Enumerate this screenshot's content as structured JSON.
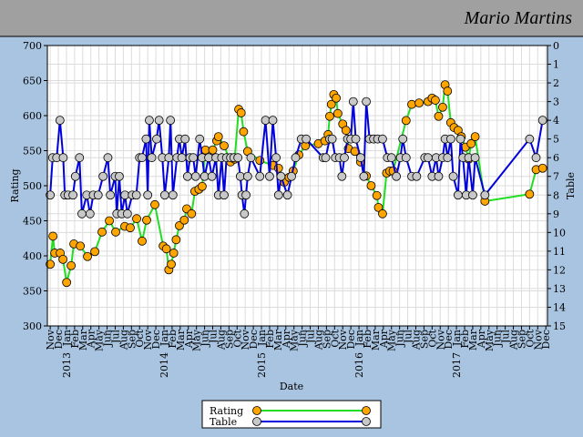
{
  "chart_data": {
    "type": "line",
    "title": "Mario Martins",
    "x_label": "Date",
    "y_label": "Rating",
    "y2_label": "Table",
    "xlim": [
      -0.35,
      61.2
    ],
    "ylim": [
      300,
      700
    ],
    "y2lim": [
      15,
      0
    ],
    "yticks": [
      300,
      350,
      400,
      450,
      500,
      550,
      600,
      650,
      700
    ],
    "y2ticks": [
      0,
      1,
      2,
      3,
      4,
      5,
      6,
      7,
      8,
      9,
      10,
      11,
      12,
      13,
      14,
      15
    ],
    "xticks": [
      {
        "value": 0,
        "label": "Nov"
      },
      {
        "value": 1,
        "label": "Dec"
      },
      {
        "value": 2,
        "label": "Jan"
      },
      {
        "value": 3,
        "label": "Feb"
      },
      {
        "value": 4,
        "label": "Mar"
      },
      {
        "value": 5,
        "label": "Apr"
      },
      {
        "value": 6,
        "label": "May"
      },
      {
        "value": 7,
        "label": "Jun"
      },
      {
        "value": 8,
        "label": "Jul"
      },
      {
        "value": 9,
        "label": "Aug"
      },
      {
        "value": 10,
        "label": "Sep"
      },
      {
        "value": 11,
        "label": "Oct"
      },
      {
        "value": 12,
        "label": "Nov"
      },
      {
        "value": 13,
        "label": "Dec"
      },
      {
        "value": 14,
        "label": "Jan"
      },
      {
        "value": 15,
        "label": "Feb"
      },
      {
        "value": 16,
        "label": "Mar"
      },
      {
        "value": 17,
        "label": "Apr"
      },
      {
        "value": 18,
        "label": "May"
      },
      {
        "value": 19,
        "label": "Jun"
      },
      {
        "value": 20,
        "label": "Jul"
      },
      {
        "value": 21,
        "label": "Aug"
      },
      {
        "value": 22,
        "label": "Sep"
      },
      {
        "value": 23,
        "label": "Oct"
      },
      {
        "value": 24,
        "label": "Nov"
      },
      {
        "value": 25,
        "label": "Dec"
      },
      {
        "value": 26,
        "label": "Jan"
      },
      {
        "value": 27,
        "label": "Feb"
      },
      {
        "value": 28,
        "label": "Mar"
      },
      {
        "value": 29,
        "label": "Apr"
      },
      {
        "value": 30,
        "label": "May"
      },
      {
        "value": 31,
        "label": "Jun"
      },
      {
        "value": 32,
        "label": "Jul"
      },
      {
        "value": 33,
        "label": "Aug"
      },
      {
        "value": 34,
        "label": "Sep"
      },
      {
        "value": 35,
        "label": "Oct"
      },
      {
        "value": 36,
        "label": "Nov"
      },
      {
        "value": 37,
        "label": "Dec"
      },
      {
        "value": 38,
        "label": "Jan"
      },
      {
        "value": 39,
        "label": "Feb"
      },
      {
        "value": 40,
        "label": "Mar"
      },
      {
        "value": 41,
        "label": "Apr"
      },
      {
        "value": 42,
        "label": "May"
      },
      {
        "value": 43,
        "label": "Jun"
      },
      {
        "value": 44,
        "label": "Jul"
      },
      {
        "value": 45,
        "label": "Aug"
      },
      {
        "value": 46,
        "label": "Sep"
      },
      {
        "value": 47,
        "label": "Oct"
      },
      {
        "value": 48,
        "label": "Nov"
      },
      {
        "value": 49,
        "label": "Dec"
      },
      {
        "value": 50,
        "label": "Jan"
      },
      {
        "value": 51,
        "label": "Feb"
      },
      {
        "value": 52,
        "label": "Mar"
      },
      {
        "value": 53,
        "label": "Apr"
      },
      {
        "value": 54,
        "label": "May"
      },
      {
        "value": 55,
        "label": "Jun"
      },
      {
        "value": 56,
        "label": "Jul"
      },
      {
        "value": 57,
        "label": "Aug"
      },
      {
        "value": 58,
        "label": "Sep"
      },
      {
        "value": 59,
        "label": "Oct"
      },
      {
        "value": 60,
        "label": "Nov"
      },
      {
        "value": 61,
        "label": "Dec"
      }
    ],
    "year_ticks": [
      {
        "value": 2,
        "label": "2013"
      },
      {
        "value": 14,
        "label": "2014"
      },
      {
        "value": 26,
        "label": "2015"
      },
      {
        "value": 38,
        "label": "2016"
      },
      {
        "value": 50,
        "label": "2017"
      }
    ],
    "grid": true,
    "series": [
      {
        "name": "Rating",
        "color": "#22dd22",
        "marker_color": "#ffa500",
        "axis": "y",
        "x": [
          0.0,
          0.34,
          0.56,
          1.23,
          1.57,
          2.02,
          2.58,
          2.91,
          3.7,
          4.59,
          5.49,
          6.38,
          7.28,
          8.06,
          9.18,
          9.85,
          10.64,
          11.31,
          11.87,
          12.88,
          13.9,
          14.3,
          14.6,
          14.9,
          15.2,
          15.5,
          15.9,
          16.5,
          16.8,
          17.4,
          17.8,
          18.3,
          18.7,
          19.1,
          20.0,
          20.5,
          20.7,
          21.4,
          22.2,
          22.7,
          23.2,
          23.5,
          23.8,
          24.3,
          25.8,
          27.4,
          28.1,
          28.8,
          29.4,
          29.9,
          30.6,
          31.4,
          33.0,
          33.8,
          34.2,
          34.4,
          34.6,
          34.9,
          35.2,
          35.4,
          36.0,
          36.4,
          36.7,
          37.5,
          38.2,
          38.9,
          39.5,
          40.2,
          40.4,
          40.9,
          41.4,
          41.8,
          42.2,
          43.8,
          44.5,
          45.4,
          46.5,
          47.0,
          47.4,
          47.8,
          48.3,
          48.6,
          48.9,
          49.3,
          49.7,
          50.2,
          50.6,
          51.1,
          51.5,
          51.8,
          52.3,
          53.5,
          59.0,
          59.8,
          60.6
        ],
        "values": [
          388,
          428,
          404,
          404,
          395,
          362,
          386,
          417,
          414,
          399,
          406,
          434,
          450,
          434,
          442,
          440,
          453,
          421,
          451,
          473,
          414,
          410,
          380,
          388,
          404,
          423,
          443,
          451,
          467,
          460,
          492,
          495,
          499,
          551,
          551,
          564,
          570,
          557,
          534,
          538,
          609,
          604,
          577,
          549,
          536,
          529,
          525,
          505,
          512,
          521,
          544,
          557,
          560,
          564,
          573,
          599,
          616,
          630,
          625,
          603,
          588,
          579,
          553,
          549,
          534,
          514,
          500,
          486,
          469,
          460,
          518,
          521,
          521,
          593,
          616,
          618,
          620,
          625,
          622,
          599,
          612,
          644,
          635,
          590,
          583,
          579,
          570,
          555,
          538,
          560,
          570,
          478,
          488,
          523,
          525
        ]
      },
      {
        "name": "Table",
        "color": "#0000dd",
        "marker_color": "#c8c8c8",
        "axis": "y2",
        "x": [
          0.0,
          0.3,
          0.8,
          1.2,
          1.6,
          1.8,
          2.2,
          2.8,
          3.1,
          3.6,
          3.9,
          4.5,
          4.9,
          5.3,
          5.9,
          6.5,
          7.1,
          7.4,
          8.0,
          8.2,
          8.5,
          8.8,
          9.2,
          9.5,
          10.1,
          10.6,
          11.0,
          11.3,
          11.8,
          12.0,
          12.2,
          12.5,
          13.1,
          13.4,
          13.8,
          14.1,
          14.6,
          14.8,
          15.1,
          15.6,
          15.9,
          16.2,
          16.6,
          16.9,
          17.2,
          17.6,
          17.9,
          18.4,
          18.7,
          19.0,
          19.5,
          19.9,
          20.4,
          20.7,
          21.1,
          21.4,
          21.7,
          22.2,
          22.6,
          23.1,
          23.4,
          23.6,
          23.9,
          24.1,
          24.3,
          24.7,
          25.8,
          26.5,
          27.0,
          27.4,
          27.8,
          28.1,
          28.4,
          29.2,
          29.7,
          30.2,
          30.9,
          31.5,
          33.6,
          33.9,
          34.4,
          34.7,
          35.1,
          35.6,
          35.9,
          36.2,
          36.6,
          37.0,
          37.3,
          37.6,
          38.2,
          38.6,
          38.9,
          39.3,
          39.8,
          40.3,
          40.9,
          41.5,
          42.0,
          42.6,
          43.1,
          43.4,
          43.8,
          44.5,
          45.1,
          46.1,
          46.5,
          47.0,
          47.5,
          47.8,
          48.3,
          48.6,
          48.9,
          49.3,
          49.6,
          50.2,
          50.5,
          50.8,
          51.2,
          51.5,
          52.0,
          52.3,
          53.5,
          59.0,
          59.8,
          60.6
        ],
        "values": [
          8,
          6,
          6,
          4,
          6,
          8,
          8,
          8,
          7,
          6,
          9,
          8,
          9,
          8,
          8,
          7,
          6,
          8,
          7,
          9,
          7,
          9,
          8,
          9,
          8,
          8,
          6,
          6,
          5,
          8,
          4,
          6,
          5,
          4,
          6,
          8,
          6,
          4,
          8,
          6,
          5,
          6,
          5,
          7,
          6,
          6,
          7,
          5,
          6,
          7,
          6,
          7,
          6,
          8,
          6,
          8,
          6,
          6,
          6,
          6,
          7,
          8,
          9,
          8,
          7,
          6,
          7,
          4,
          7,
          4,
          6,
          8,
          7,
          8,
          7,
          6,
          5,
          5,
          6,
          6,
          5,
          5,
          6,
          6,
          7,
          6,
          5,
          5,
          3,
          5,
          6,
          7,
          3,
          5,
          5,
          5,
          5,
          6,
          6,
          7,
          6,
          5,
          6,
          7,
          7,
          6,
          6,
          7,
          6,
          7,
          6,
          5,
          6,
          5,
          7,
          8,
          5,
          6,
          8,
          6,
          8,
          6,
          8,
          5,
          6,
          4
        ]
      }
    ]
  }
}
